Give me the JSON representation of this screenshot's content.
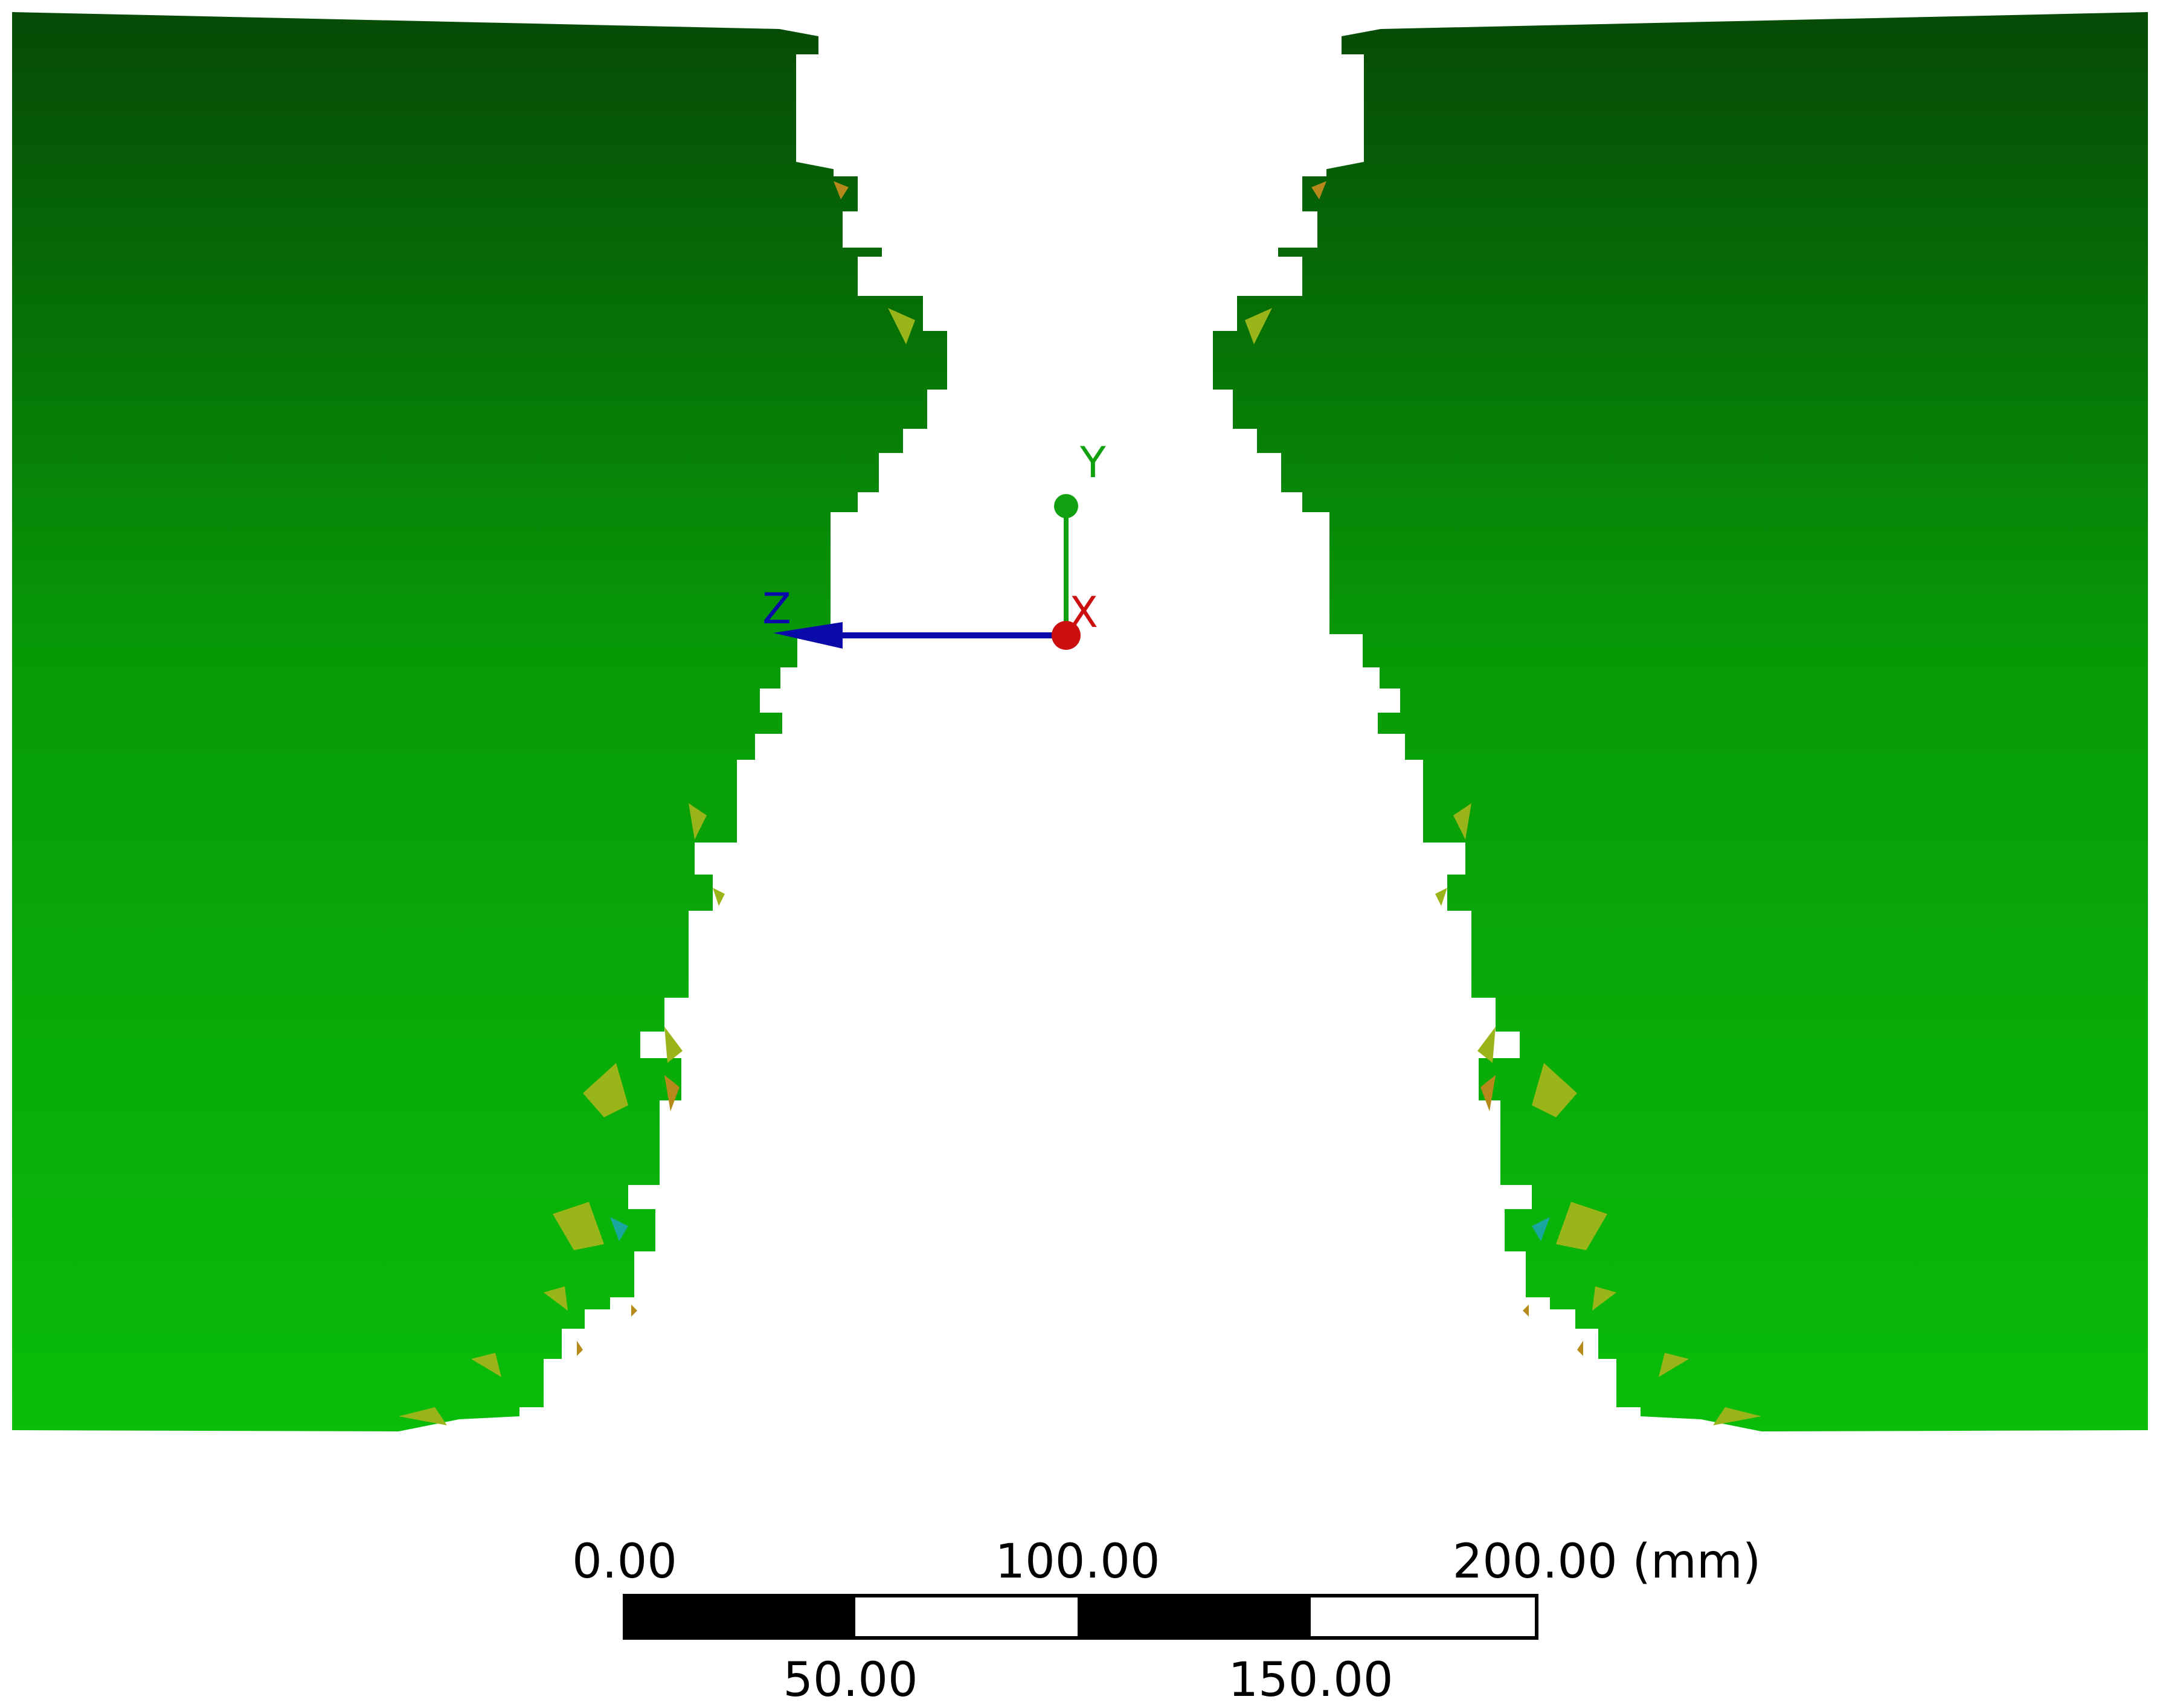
{
  "colors": {
    "background": "#ffffff",
    "mesh_top": "#064a06",
    "mesh_mid": "#079a07",
    "mesh_bottom": "#09bd09",
    "speckle_yellow": "#9ab51a",
    "speckle_orange": "#b58a1a",
    "speckle_cyan": "#19a6a0",
    "axis_y": "#10a010",
    "axis_z": "#0a0aa8",
    "axis_x": "#cc1010",
    "scale_black": "#000000",
    "scale_white": "#ffffff"
  },
  "triad": {
    "y_label": "Y",
    "z_label": "Z",
    "x_label": "X"
  },
  "scale_bar": {
    "top_labels": [
      "0.00",
      "100.00",
      "200.00 (mm)"
    ],
    "bottom_labels": [
      "50.00",
      "150.00"
    ]
  }
}
